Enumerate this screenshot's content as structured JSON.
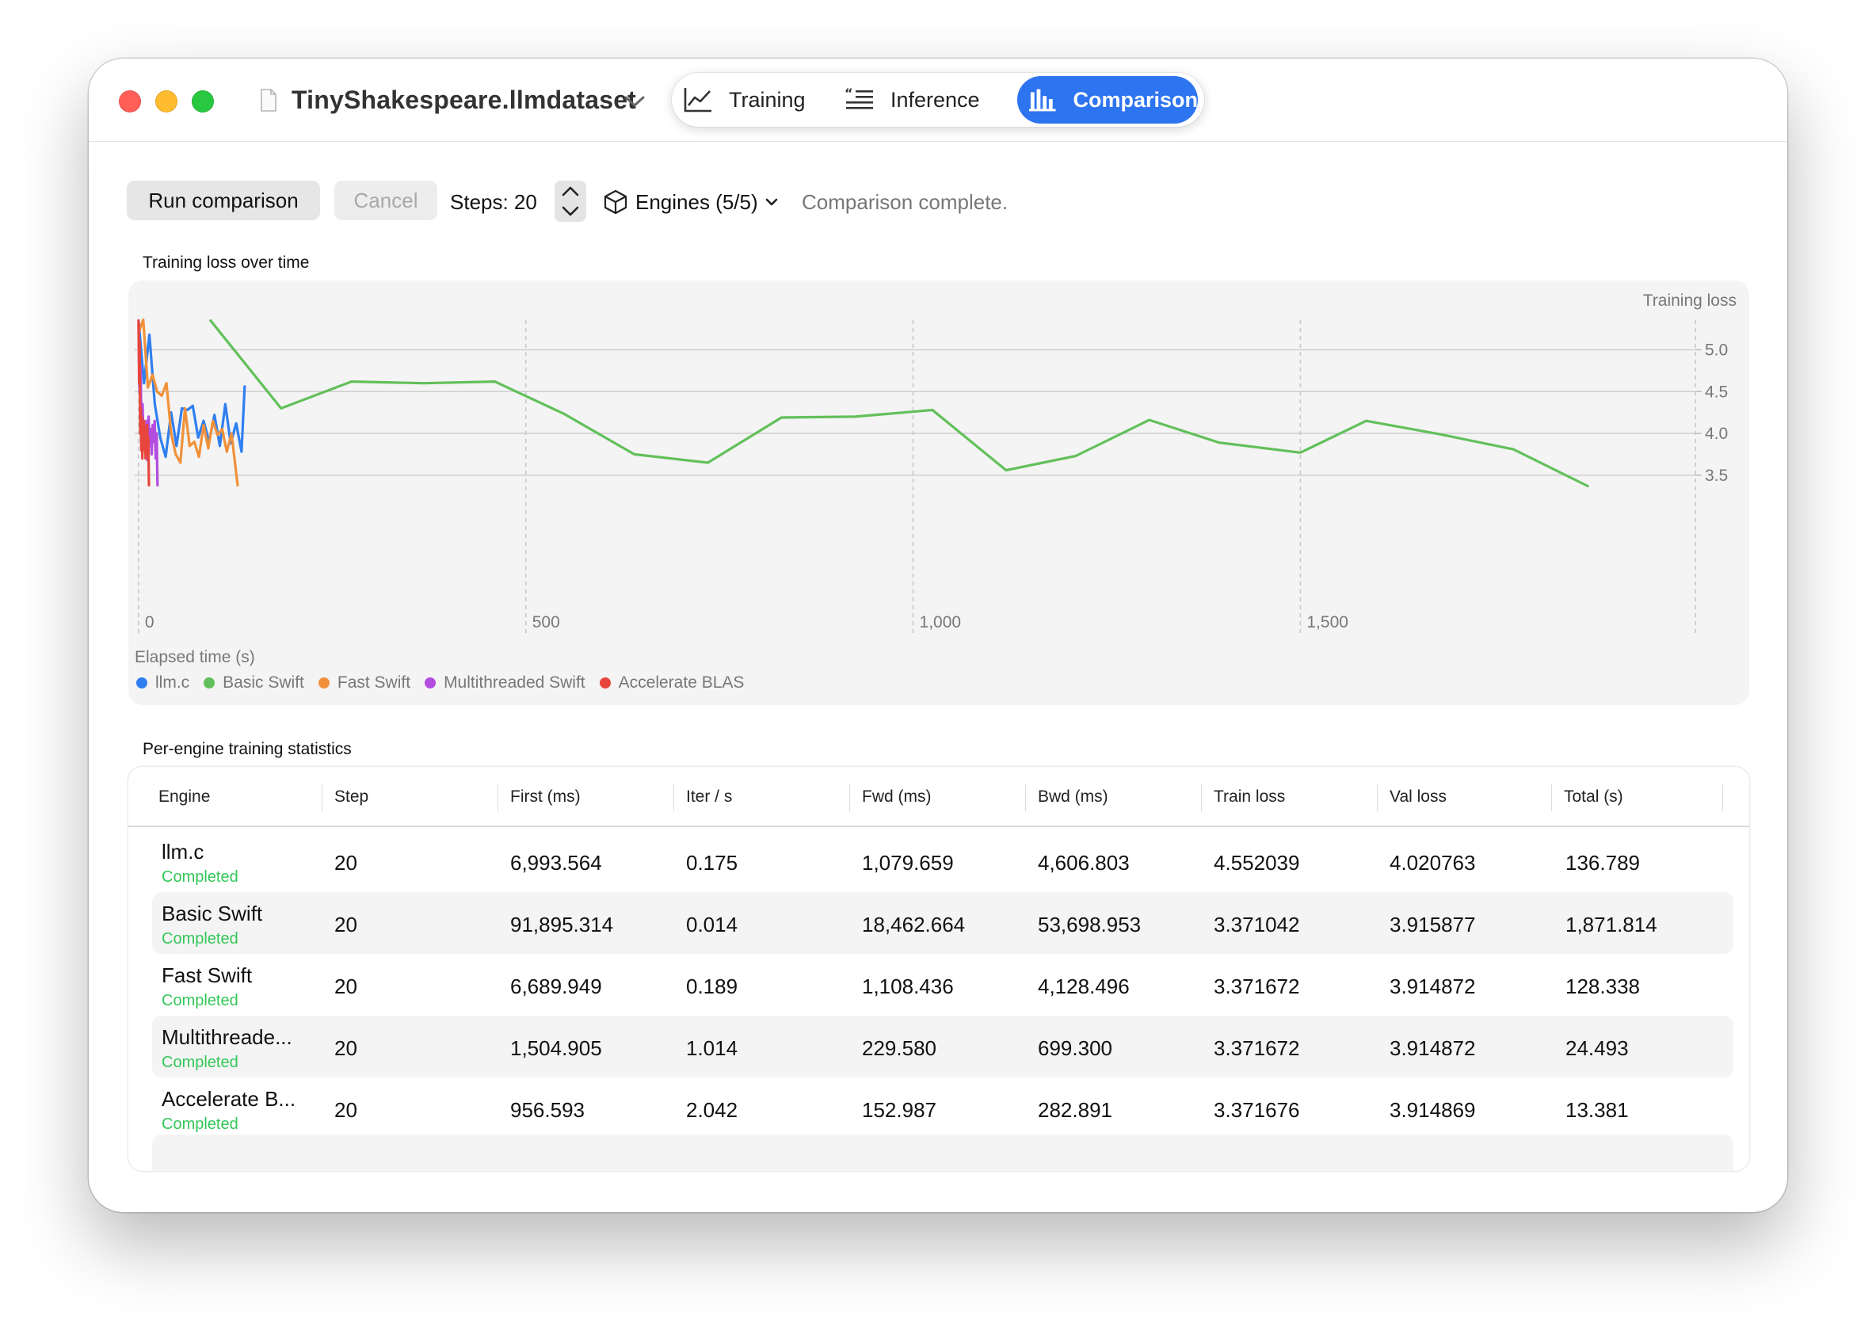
{
  "window": {
    "document_title": "TinyShakespeare.llmdataset"
  },
  "tabs": [
    {
      "label": "Training",
      "icon": "line-chart-icon",
      "active": false
    },
    {
      "label": "Inference",
      "icon": "quote-lines-icon",
      "active": false
    },
    {
      "label": "Comparison",
      "icon": "bar-chart-icon",
      "active": true
    }
  ],
  "toolbar": {
    "run_label": "Run comparison",
    "cancel_label": "Cancel",
    "steps_label": "Steps: 20",
    "engines_label": "Engines (5/5)",
    "status_text": "Comparison complete."
  },
  "chart": {
    "section_title": "Training loss over time",
    "y_axis_title": "Training loss",
    "x_axis_title": "Elapsed time (s)",
    "colors": {
      "llm.c": "#2f7ff0",
      "Basic Swift": "#62c05a",
      "Fast Swift": "#f0913a",
      "Multithreaded Swift": "#b34de0",
      "Accelerate BLAS": "#e8453c"
    },
    "legend_position": "bottom-left",
    "grid": true
  },
  "chart_data": {
    "type": "line",
    "title": "Training loss over time",
    "xlabel": "Elapsed time (s)",
    "ylabel": "Training loss",
    "xlim": [
      -5,
      2010
    ],
    "ylim": [
      3.1,
      5.45
    ],
    "x_ticks": [
      0,
      500,
      1000,
      1500
    ],
    "x_tick_labels": [
      "0",
      "500",
      "1,000",
      "1,500"
    ],
    "y_ticks": [
      3.5,
      4.0,
      4.5,
      5.0
    ],
    "y_tick_labels": [
      "3.5",
      "4.0",
      "4.5",
      "5.0"
    ],
    "series": [
      {
        "name": "llm.c",
        "points": [
          [
            0,
            5.35
          ],
          [
            7,
            4.6
          ],
          [
            14,
            5.18
          ],
          [
            21,
            4.35
          ],
          [
            28,
            3.95
          ],
          [
            35,
            3.72
          ],
          [
            42,
            4.25
          ],
          [
            49,
            3.85
          ],
          [
            56,
            4.3
          ],
          [
            63,
            4.28
          ],
          [
            70,
            4.33
          ],
          [
            77,
            3.95
          ],
          [
            84,
            4.15
          ],
          [
            91,
            3.9
          ],
          [
            98,
            4.22
          ],
          [
            105,
            3.85
          ],
          [
            112,
            4.35
          ],
          [
            119,
            3.88
          ],
          [
            126,
            4.12
          ],
          [
            133,
            3.78
          ],
          [
            137,
            4.56
          ]
        ]
      },
      {
        "name": "Basic Swift",
        "points": [
          [
            93,
            5.35
          ],
          [
            184,
            4.3
          ],
          [
            275,
            4.62
          ],
          [
            368,
            4.6
          ],
          [
            460,
            4.62
          ],
          [
            550,
            4.23
          ],
          [
            640,
            3.75
          ],
          [
            735,
            3.65
          ],
          [
            830,
            4.19
          ],
          [
            925,
            4.2
          ],
          [
            1025,
            4.28
          ],
          [
            1120,
            3.56
          ],
          [
            1210,
            3.73
          ],
          [
            1305,
            4.16
          ],
          [
            1395,
            3.89
          ],
          [
            1500,
            3.77
          ],
          [
            1585,
            4.15
          ],
          [
            1680,
            3.99
          ],
          [
            1775,
            3.81
          ],
          [
            1871,
            3.37
          ]
        ]
      },
      {
        "name": "Fast Swift",
        "points": [
          [
            0,
            5.2
          ],
          [
            6,
            5.36
          ],
          [
            12,
            4.55
          ],
          [
            18,
            4.7
          ],
          [
            24,
            4.5
          ],
          [
            30,
            4.45
          ],
          [
            36,
            4.6
          ],
          [
            42,
            4.0
          ],
          [
            48,
            3.75
          ],
          [
            54,
            3.65
          ],
          [
            60,
            4.3
          ],
          [
            66,
            3.85
          ],
          [
            72,
            3.9
          ],
          [
            78,
            3.72
          ],
          [
            84,
            4.1
          ],
          [
            90,
            3.82
          ],
          [
            96,
            4.15
          ],
          [
            102,
            3.98
          ],
          [
            108,
            4.05
          ],
          [
            114,
            3.78
          ],
          [
            120,
            4.0
          ],
          [
            128,
            3.38
          ]
        ]
      },
      {
        "name": "Multithreaded Swift",
        "points": [
          [
            0,
            5.3
          ],
          [
            1.3,
            4.5
          ],
          [
            2.6,
            4.8
          ],
          [
            3.9,
            4.0
          ],
          [
            5.2,
            4.35
          ],
          [
            6.5,
            3.8
          ],
          [
            7.8,
            4.1
          ],
          [
            9.1,
            3.95
          ],
          [
            10.4,
            4.15
          ],
          [
            11.7,
            3.68
          ],
          [
            13.0,
            4.2
          ],
          [
            14.3,
            3.85
          ],
          [
            15.6,
            4.05
          ],
          [
            16.9,
            3.75
          ],
          [
            18.2,
            4.1
          ],
          [
            19.5,
            3.9
          ],
          [
            20.8,
            4.15
          ],
          [
            22.1,
            3.7
          ],
          [
            23.4,
            4.0
          ],
          [
            24.5,
            3.38
          ]
        ]
      },
      {
        "name": "Accelerate BLAS",
        "points": [
          [
            0,
            5.35
          ],
          [
            0.7,
            4.6
          ],
          [
            1.4,
            5.1
          ],
          [
            2.1,
            4.0
          ],
          [
            2.8,
            4.3
          ],
          [
            3.5,
            3.8
          ],
          [
            4.2,
            4.2
          ],
          [
            4.9,
            3.7
          ],
          [
            5.6,
            4.1
          ],
          [
            6.3,
            3.8
          ],
          [
            7.0,
            4.15
          ],
          [
            7.7,
            3.9
          ],
          [
            8.4,
            4.05
          ],
          [
            9.1,
            3.7
          ],
          [
            9.8,
            4.0
          ],
          [
            10.5,
            3.85
          ],
          [
            11.2,
            4.1
          ],
          [
            11.9,
            3.75
          ],
          [
            12.6,
            3.95
          ],
          [
            13.4,
            3.38
          ]
        ]
      }
    ]
  },
  "table": {
    "section_title": "Per-engine training statistics",
    "columns": [
      "Engine",
      "Step",
      "First (ms)",
      "Iter / s",
      "Fwd (ms)",
      "Bwd (ms)",
      "Train loss",
      "Val loss",
      "Total (s)"
    ],
    "rows": [
      {
        "engine": "llm.c",
        "status": "Completed",
        "step": "20",
        "first": "6,993.564",
        "iter": "0.175",
        "fwd": "1,079.659",
        "bwd": "4,606.803",
        "train": "4.552039",
        "val": "4.020763",
        "total": "136.789"
      },
      {
        "engine": "Basic Swift",
        "status": "Completed",
        "step": "20",
        "first": "91,895.314",
        "iter": "0.014",
        "fwd": "18,462.664",
        "bwd": "53,698.953",
        "train": "3.371042",
        "val": "3.915877",
        "total": "1,871.814"
      },
      {
        "engine": "Fast Swift",
        "status": "Completed",
        "step": "20",
        "first": "6,689.949",
        "iter": "0.189",
        "fwd": "1,108.436",
        "bwd": "4,128.496",
        "train": "3.371672",
        "val": "3.914872",
        "total": "128.338"
      },
      {
        "engine": "Multithreade...",
        "status": "Completed",
        "step": "20",
        "first": "1,504.905",
        "iter": "1.014",
        "fwd": "229.580",
        "bwd": "699.300",
        "train": "3.371672",
        "val": "3.914872",
        "total": "24.493"
      },
      {
        "engine": "Accelerate B...",
        "status": "Completed",
        "step": "20",
        "first": "956.593",
        "iter": "2.042",
        "fwd": "152.987",
        "bwd": "282.891",
        "train": "3.371676",
        "val": "3.914869",
        "total": "13.381"
      }
    ]
  }
}
